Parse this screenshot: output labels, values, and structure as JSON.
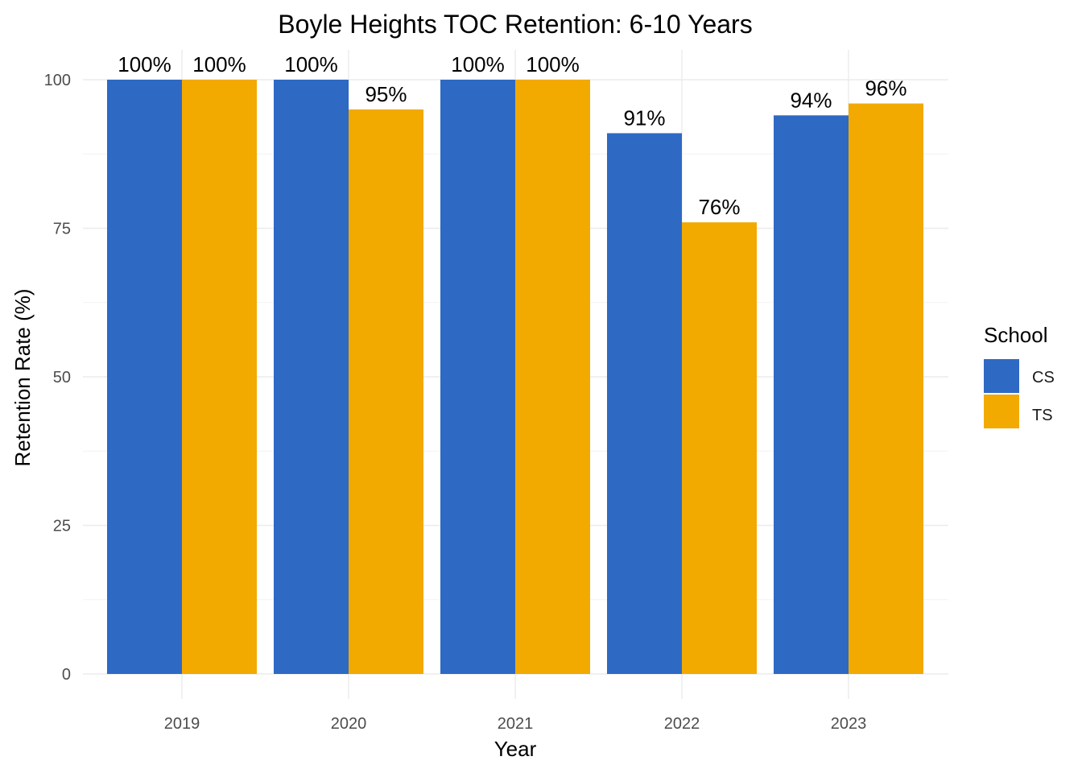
{
  "chart_data": {
    "type": "bar",
    "title": "Boyle Heights TOC Retention: 6-10 Years",
    "xlabel": "Year",
    "ylabel": "Retention Rate (%)",
    "categories": [
      "2019",
      "2020",
      "2021",
      "2022",
      "2023"
    ],
    "series": [
      {
        "name": "CS",
        "color": "#2E69C4",
        "values": [
          100,
          100,
          100,
          91,
          94
        ],
        "labels": [
          "100%",
          "100%",
          "100%",
          "91%",
          "94%"
        ]
      },
      {
        "name": "TS",
        "color": "#F2A900",
        "values": [
          100,
          95,
          100,
          76,
          96
        ],
        "labels": [
          "100%",
          "95%",
          "100%",
          "76%",
          "96%"
        ]
      }
    ],
    "ylim": [
      0,
      100
    ],
    "yticks": [
      0,
      25,
      50,
      75,
      100
    ],
    "ytick_labels": [
      "0",
      "25",
      "50",
      "75",
      "100"
    ],
    "grid": true,
    "legend": {
      "title": "School",
      "position": "right",
      "entries": [
        "CS",
        "TS"
      ]
    }
  }
}
